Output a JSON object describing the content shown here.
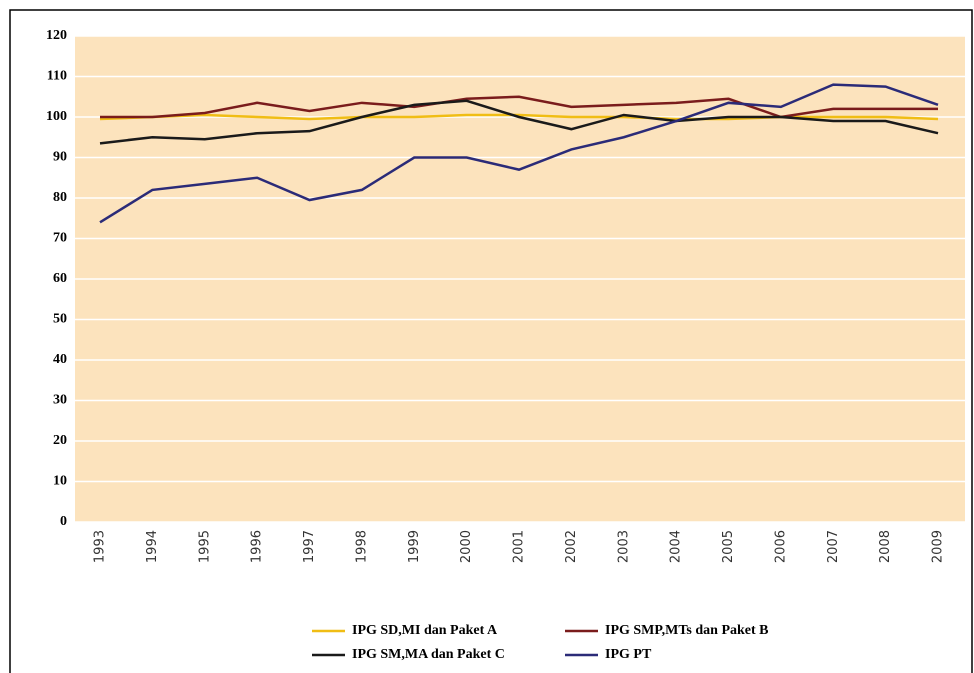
{
  "chart_data": {
    "type": "line",
    "categories": [
      "1993",
      "1994",
      "1995",
      "1996",
      "1997",
      "1998",
      "1999",
      "2000",
      "2001",
      "2002",
      "2003",
      "2004",
      "2005",
      "2006",
      "2007",
      "2008",
      "2009"
    ],
    "series": [
      {
        "name": "IPG SD,MI dan Paket A",
        "color": "#f0bd14",
        "values": [
          99.5,
          100,
          100.5,
          100,
          99.5,
          100,
          100,
          100.5,
          100.5,
          100,
          100,
          99.5,
          99.5,
          100,
          100,
          100,
          99.5
        ]
      },
      {
        "name": "IPG SMP,MTs dan Paket B",
        "color": "#7a1c1c",
        "values": [
          100,
          100,
          101,
          103.5,
          101.5,
          103.5,
          102.5,
          104.5,
          105,
          102.5,
          103,
          103.5,
          104.5,
          100,
          102,
          102,
          102
        ]
      },
      {
        "name": "IPG SM,MA dan Paket C",
        "color": "#1a1a1a",
        "values": [
          93.5,
          95,
          94.5,
          96,
          96.5,
          100,
          103,
          104,
          100,
          97,
          100.5,
          99,
          100,
          100,
          99,
          99,
          96
        ]
      },
      {
        "name": "IPG PT",
        "color": "#2b2b78",
        "values": [
          74,
          82,
          83.5,
          85,
          79.5,
          82,
          90,
          90,
          87,
          92,
          95,
          99,
          103.5,
          102.5,
          108,
          107.5,
          103
        ]
      }
    ],
    "ylim": [
      0,
      120
    ],
    "yticks": [
      0,
      10,
      20,
      30,
      40,
      50,
      60,
      70,
      80,
      90,
      100,
      110,
      120
    ],
    "grid": true
  }
}
